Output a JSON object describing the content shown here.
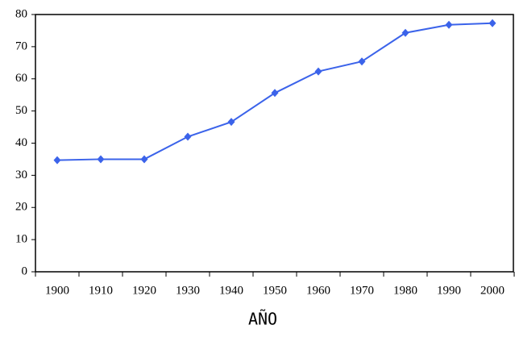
{
  "chart_data": {
    "type": "line",
    "x_label": "AÑO",
    "categories": [
      "1900",
      "1910",
      "1920",
      "1930",
      "1940",
      "1950",
      "1960",
      "1970",
      "1980",
      "1990",
      "2000"
    ],
    "values": [
      34.7,
      35,
      35,
      42,
      46.6,
      55.6,
      62.3,
      65.4,
      74.3,
      76.8,
      77.3
    ],
    "color": "#3b63ea",
    "ylim": [
      0,
      80
    ],
    "yticks": [
      0,
      10,
      20,
      30,
      40,
      50,
      60,
      70,
      80
    ]
  }
}
